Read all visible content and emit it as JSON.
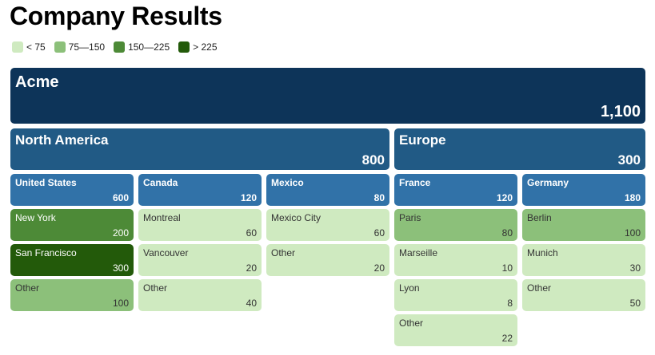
{
  "chart_data": {
    "type": "treemap",
    "title": "Company Results",
    "legend": {
      "placement": "top-left",
      "items": [
        {
          "label": "< 75",
          "color": "#cfeac0"
        },
        {
          "label": "75—150",
          "color": "#8cc07a"
        },
        {
          "label": "150—225",
          "color": "#4d8a37"
        },
        {
          "label": "> 225",
          "color": "#235a0a"
        }
      ]
    },
    "root": {
      "name": "Acme",
      "value": 1100,
      "value_label": "1,100",
      "color": "#0d3459",
      "children": [
        {
          "name": "North America",
          "value": 800,
          "value_label": "800",
          "color": "#215a85",
          "children": [
            {
              "name": "United States",
              "value": 600,
              "value_label": "600",
              "color": "#3172a8",
              "children": [
                {
                  "name": "New York",
                  "value": 200,
                  "value_label": "200"
                },
                {
                  "name": "San Francisco",
                  "value": 300,
                  "value_label": "300"
                },
                {
                  "name": "Other",
                  "value": 100,
                  "value_label": "100"
                }
              ]
            },
            {
              "name": "Canada",
              "value": 120,
              "value_label": "120",
              "color": "#3172a8",
              "children": [
                {
                  "name": "Montreal",
                  "value": 60,
                  "value_label": "60"
                },
                {
                  "name": "Vancouver",
                  "value": 20,
                  "value_label": "20"
                },
                {
                  "name": "Other",
                  "value": 40,
                  "value_label": "40"
                }
              ]
            },
            {
              "name": "Mexico",
              "value": 80,
              "value_label": "80",
              "color": "#3172a8",
              "children": [
                {
                  "name": "Mexico City",
                  "value": 60,
                  "value_label": "60"
                },
                {
                  "name": "Other",
                  "value": 20,
                  "value_label": "20"
                }
              ]
            }
          ]
        },
        {
          "name": "Europe",
          "value": 300,
          "value_label": "300",
          "color": "#215a85",
          "children": [
            {
              "name": "France",
              "value": 120,
              "value_label": "120",
              "color": "#3172a8",
              "children": [
                {
                  "name": "Paris",
                  "value": 80,
                  "value_label": "80"
                },
                {
                  "name": "Marseille",
                  "value": 10,
                  "value_label": "10"
                },
                {
                  "name": "Lyon",
                  "value": 8,
                  "value_label": "8"
                },
                {
                  "name": "Other",
                  "value": 22,
                  "value_label": "22"
                }
              ]
            },
            {
              "name": "Germany",
              "value": 180,
              "value_label": "180",
              "color": "#3172a8",
              "children": [
                {
                  "name": "Berlin",
                  "value": 100,
                  "value_label": "100"
                },
                {
                  "name": "Munich",
                  "value": 30,
                  "value_label": "30"
                },
                {
                  "name": "Other",
                  "value": 50,
                  "value_label": "50"
                }
              ]
            }
          ]
        }
      ]
    }
  }
}
